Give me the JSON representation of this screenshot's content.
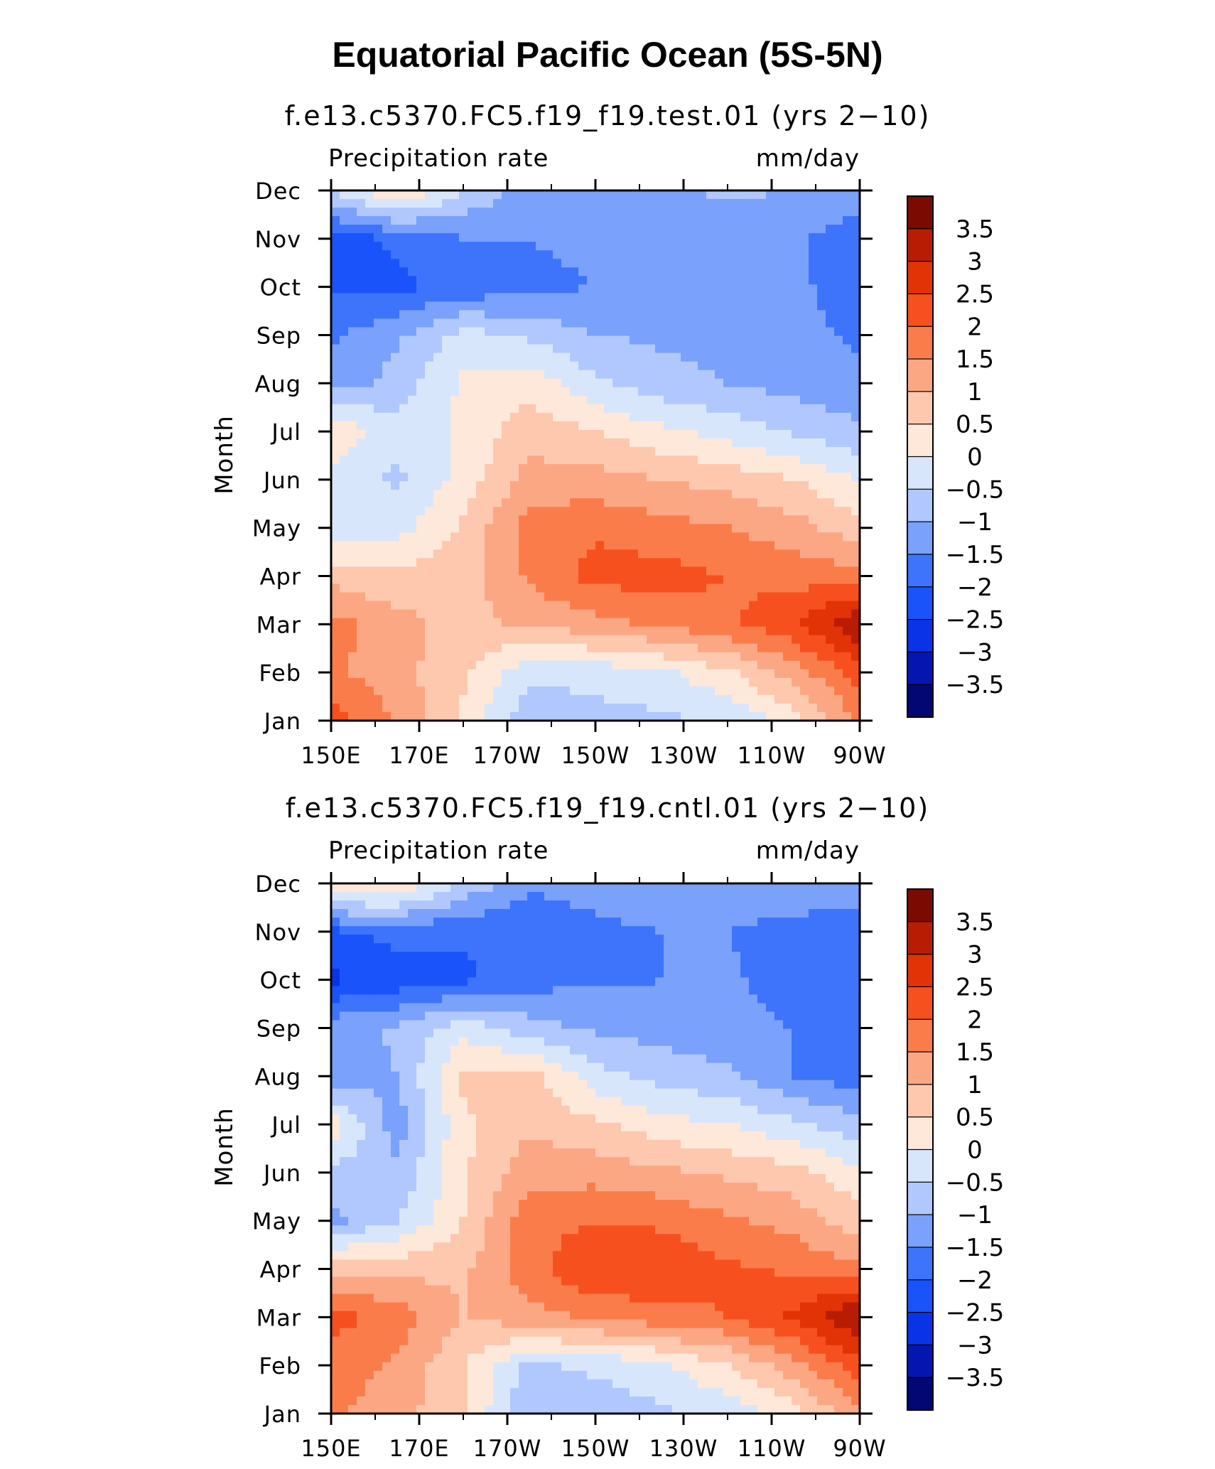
{
  "figure": {
    "title": "Equatorial Pacific Ocean (5S-5N)"
  },
  "chart_data": [
    {
      "type": "heatmap",
      "title": "f.e13.c5370.FC5.f19_f19.test.01 (yrs 2−10)",
      "left_label": "Precipitation  rate",
      "right_label": "mm/day",
      "xlabel": "",
      "ylabel": "Month",
      "x_ticks": [
        "150E",
        "170E",
        "170W",
        "150W",
        "130W",
        "110W",
        "90W"
      ],
      "x_values": [
        150,
        170,
        190,
        210,
        230,
        250,
        270
      ],
      "xlim": [
        150,
        270
      ],
      "y_ticks": [
        "Jan",
        "Feb",
        "Mar",
        "Apr",
        "May",
        "Jun",
        "Jul",
        "Aug",
        "Sep",
        "Oct",
        "Nov",
        "Dec"
      ],
      "ylim": [
        1,
        12
      ],
      "z_values": [
        [
          2.3,
          1.4,
          0.4,
          -0.9,
          -0.7,
          -0.6,
          -0.4,
          0.2,
          1.6
        ],
        [
          1.6,
          1.2,
          0.6,
          -0.4,
          -0.3,
          -0.1,
          0.4,
          1.3,
          2.2
        ],
        [
          1.7,
          1.2,
          0.8,
          1.1,
          1.3,
          1.6,
          1.9,
          2.4,
          3.5
        ],
        [
          0.8,
          0.6,
          0.8,
          1.6,
          2.2,
          2.2,
          2.0,
          1.8,
          1.7
        ],
        [
          -0.3,
          -0.2,
          0.6,
          1.7,
          1.9,
          1.7,
          1.5,
          1.2,
          0.7
        ],
        [
          -0.1,
          -0.6,
          0.2,
          1.2,
          1.2,
          1.0,
          0.8,
          0.5,
          0.0
        ],
        [
          0.4,
          -0.3,
          0.1,
          0.8,
          0.5,
          0.1,
          -0.2,
          -0.6,
          -0.9
        ],
        [
          -1.3,
          -0.8,
          0.1,
          0.3,
          -0.4,
          -0.8,
          -1.0,
          -1.2,
          -1.4
        ],
        [
          -1.6,
          -1.1,
          -0.3,
          -0.6,
          -1.0,
          -1.1,
          -1.2,
          -1.3,
          -1.6
        ],
        [
          -2.1,
          -2.1,
          -1.9,
          -1.6,
          -1.5,
          -1.4,
          -1.4,
          -1.3,
          -2.0
        ],
        [
          -2.3,
          -1.9,
          -1.5,
          -1.5,
          -1.4,
          -1.4,
          -1.4,
          -1.4,
          -1.8
        ],
        [
          -0.5,
          0.6,
          -0.5,
          -1.3,
          -1.2,
          -1.1,
          -0.9,
          -1.0,
          -1.2
        ]
      ],
      "z_range": [
        -4,
        4
      ],
      "colorbar_labels": [
        "3.5",
        "3",
        "2.5",
        "2",
        "1.5",
        "1",
        "0.5",
        "0",
        "−0.5",
        "−1",
        "−1.5",
        "−2",
        "−2.5",
        "−3",
        "−3.5"
      ]
    },
    {
      "type": "heatmap",
      "title": "f.e13.c5370.FC5.f19_f19.cntl.01 (yrs 2−10)",
      "left_label": "Precipitation  rate",
      "right_label": "mm/day",
      "xlabel": "",
      "ylabel": "Month",
      "x_ticks": [
        "150E",
        "170E",
        "170W",
        "150W",
        "130W",
        "110W",
        "90W"
      ],
      "x_values": [
        150,
        170,
        190,
        210,
        230,
        250,
        270
      ],
      "xlim": [
        150,
        270
      ],
      "y_ticks": [
        "Jan",
        "Feb",
        "Mar",
        "Apr",
        "May",
        "Jun",
        "Jul",
        "Aug",
        "Sep",
        "Oct",
        "Nov",
        "Dec"
      ],
      "ylim": [
        1,
        12
      ],
      "z_values": [
        [
          1.6,
          1.2,
          0.6,
          -1.0,
          -0.8,
          -0.6,
          -0.3,
          0.2,
          1.5
        ],
        [
          1.8,
          1.4,
          0.5,
          -0.6,
          -0.4,
          -0.1,
          0.5,
          1.3,
          2.3
        ],
        [
          2.2,
          1.8,
          1.0,
          1.3,
          1.6,
          1.8,
          2.0,
          2.6,
          3.6
        ],
        [
          0.9,
          0.8,
          0.9,
          1.8,
          2.5,
          2.4,
          2.1,
          1.9,
          1.6
        ],
        [
          -1.2,
          -0.5,
          0.5,
          1.8,
          2.0,
          1.9,
          1.6,
          1.3,
          0.7
        ],
        [
          -0.6,
          -0.9,
          0.4,
          1.3,
          1.3,
          1.1,
          0.9,
          0.7,
          0.1
        ],
        [
          0.3,
          -1.3,
          0.4,
          0.9,
          0.6,
          0.2,
          0.0,
          -0.4,
          -0.8
        ],
        [
          -1.4,
          -1.0,
          0.6,
          0.7,
          -0.3,
          -0.7,
          -0.9,
          -1.5,
          -1.8
        ],
        [
          -1.2,
          -0.9,
          -0.2,
          -0.8,
          -1.1,
          -1.2,
          -1.3,
          -1.5,
          -1.8
        ],
        [
          -2.6,
          -2.3,
          -2.1,
          -1.7,
          -1.6,
          -1.5,
          -1.4,
          -1.8,
          -1.9
        ],
        [
          -2.1,
          -1.8,
          -1.9,
          -1.9,
          -1.6,
          -1.5,
          -1.5,
          -1.7,
          -1.8
        ],
        [
          0.7,
          0.6,
          -0.6,
          -1.4,
          -1.3,
          -1.2,
          -1.1,
          -1.1,
          -1.2
        ]
      ],
      "z_range": [
        -4,
        4
      ],
      "colorbar_labels": [
        "3.5",
        "3",
        "2.5",
        "2",
        "1.5",
        "1",
        "0.5",
        "0",
        "−0.5",
        "−1",
        "−1.5",
        "−2",
        "−2.5",
        "−3",
        "−3.5"
      ]
    }
  ],
  "colors": {
    "levels": [
      "#020773",
      "#0516b0",
      "#0a33e8",
      "#1b53fb",
      "#3d74fb",
      "#7aa1fb",
      "#b0c8fd",
      "#d8e6fc",
      "#fde8d9",
      "#fdc8ae",
      "#fca784",
      "#fb7c4b",
      "#f7501f",
      "#e13306",
      "#b81d04",
      "#7b0b02"
    ]
  }
}
